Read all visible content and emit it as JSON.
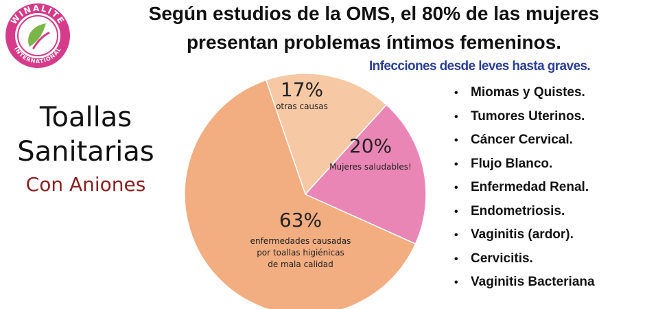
{
  "brand": {
    "logo_text": "WINALITE INTERNATIONAL",
    "colors": {
      "ring": "#d63a8a",
      "leaf": "#7ab648"
    }
  },
  "headline": {
    "line1": "Según estudios de la OMS, el 80% de las mujeres",
    "line2": "presentan problemas íntimos femeninos."
  },
  "subheadline": "Infecciones desde leves hasta graves.",
  "product": {
    "line1": "Toallas",
    "line2": "Sanitarias",
    "line3": "Con Aniones"
  },
  "chart_data": {
    "type": "pie",
    "slices": [
      {
        "value": 17,
        "percent_label": "17%",
        "label_lines": [
          "otras causas"
        ],
        "color": "#f6c8a3"
      },
      {
        "value": 20,
        "percent_label": "20%",
        "label_lines": [
          "Mujeres saludables!"
        ],
        "color": "#ea86b6"
      },
      {
        "value": 63,
        "percent_label": "63%",
        "label_lines": [
          "enfermedades causadas",
          "por toallas higiénicas",
          "de mala calidad"
        ],
        "color": "#f2ad80"
      }
    ]
  },
  "conditions": {
    "bullet": "•",
    "items": [
      "Miomas y Quistes.",
      "Tumores Uterinos.",
      "Cáncer Cervical.",
      "Flujo Blanco.",
      "Enfermedad Renal.",
      "Endometriosis.",
      "Vaginitis (ardor).",
      "Cervicitis.",
      "Vaginitis Bacteriana"
    ]
  }
}
